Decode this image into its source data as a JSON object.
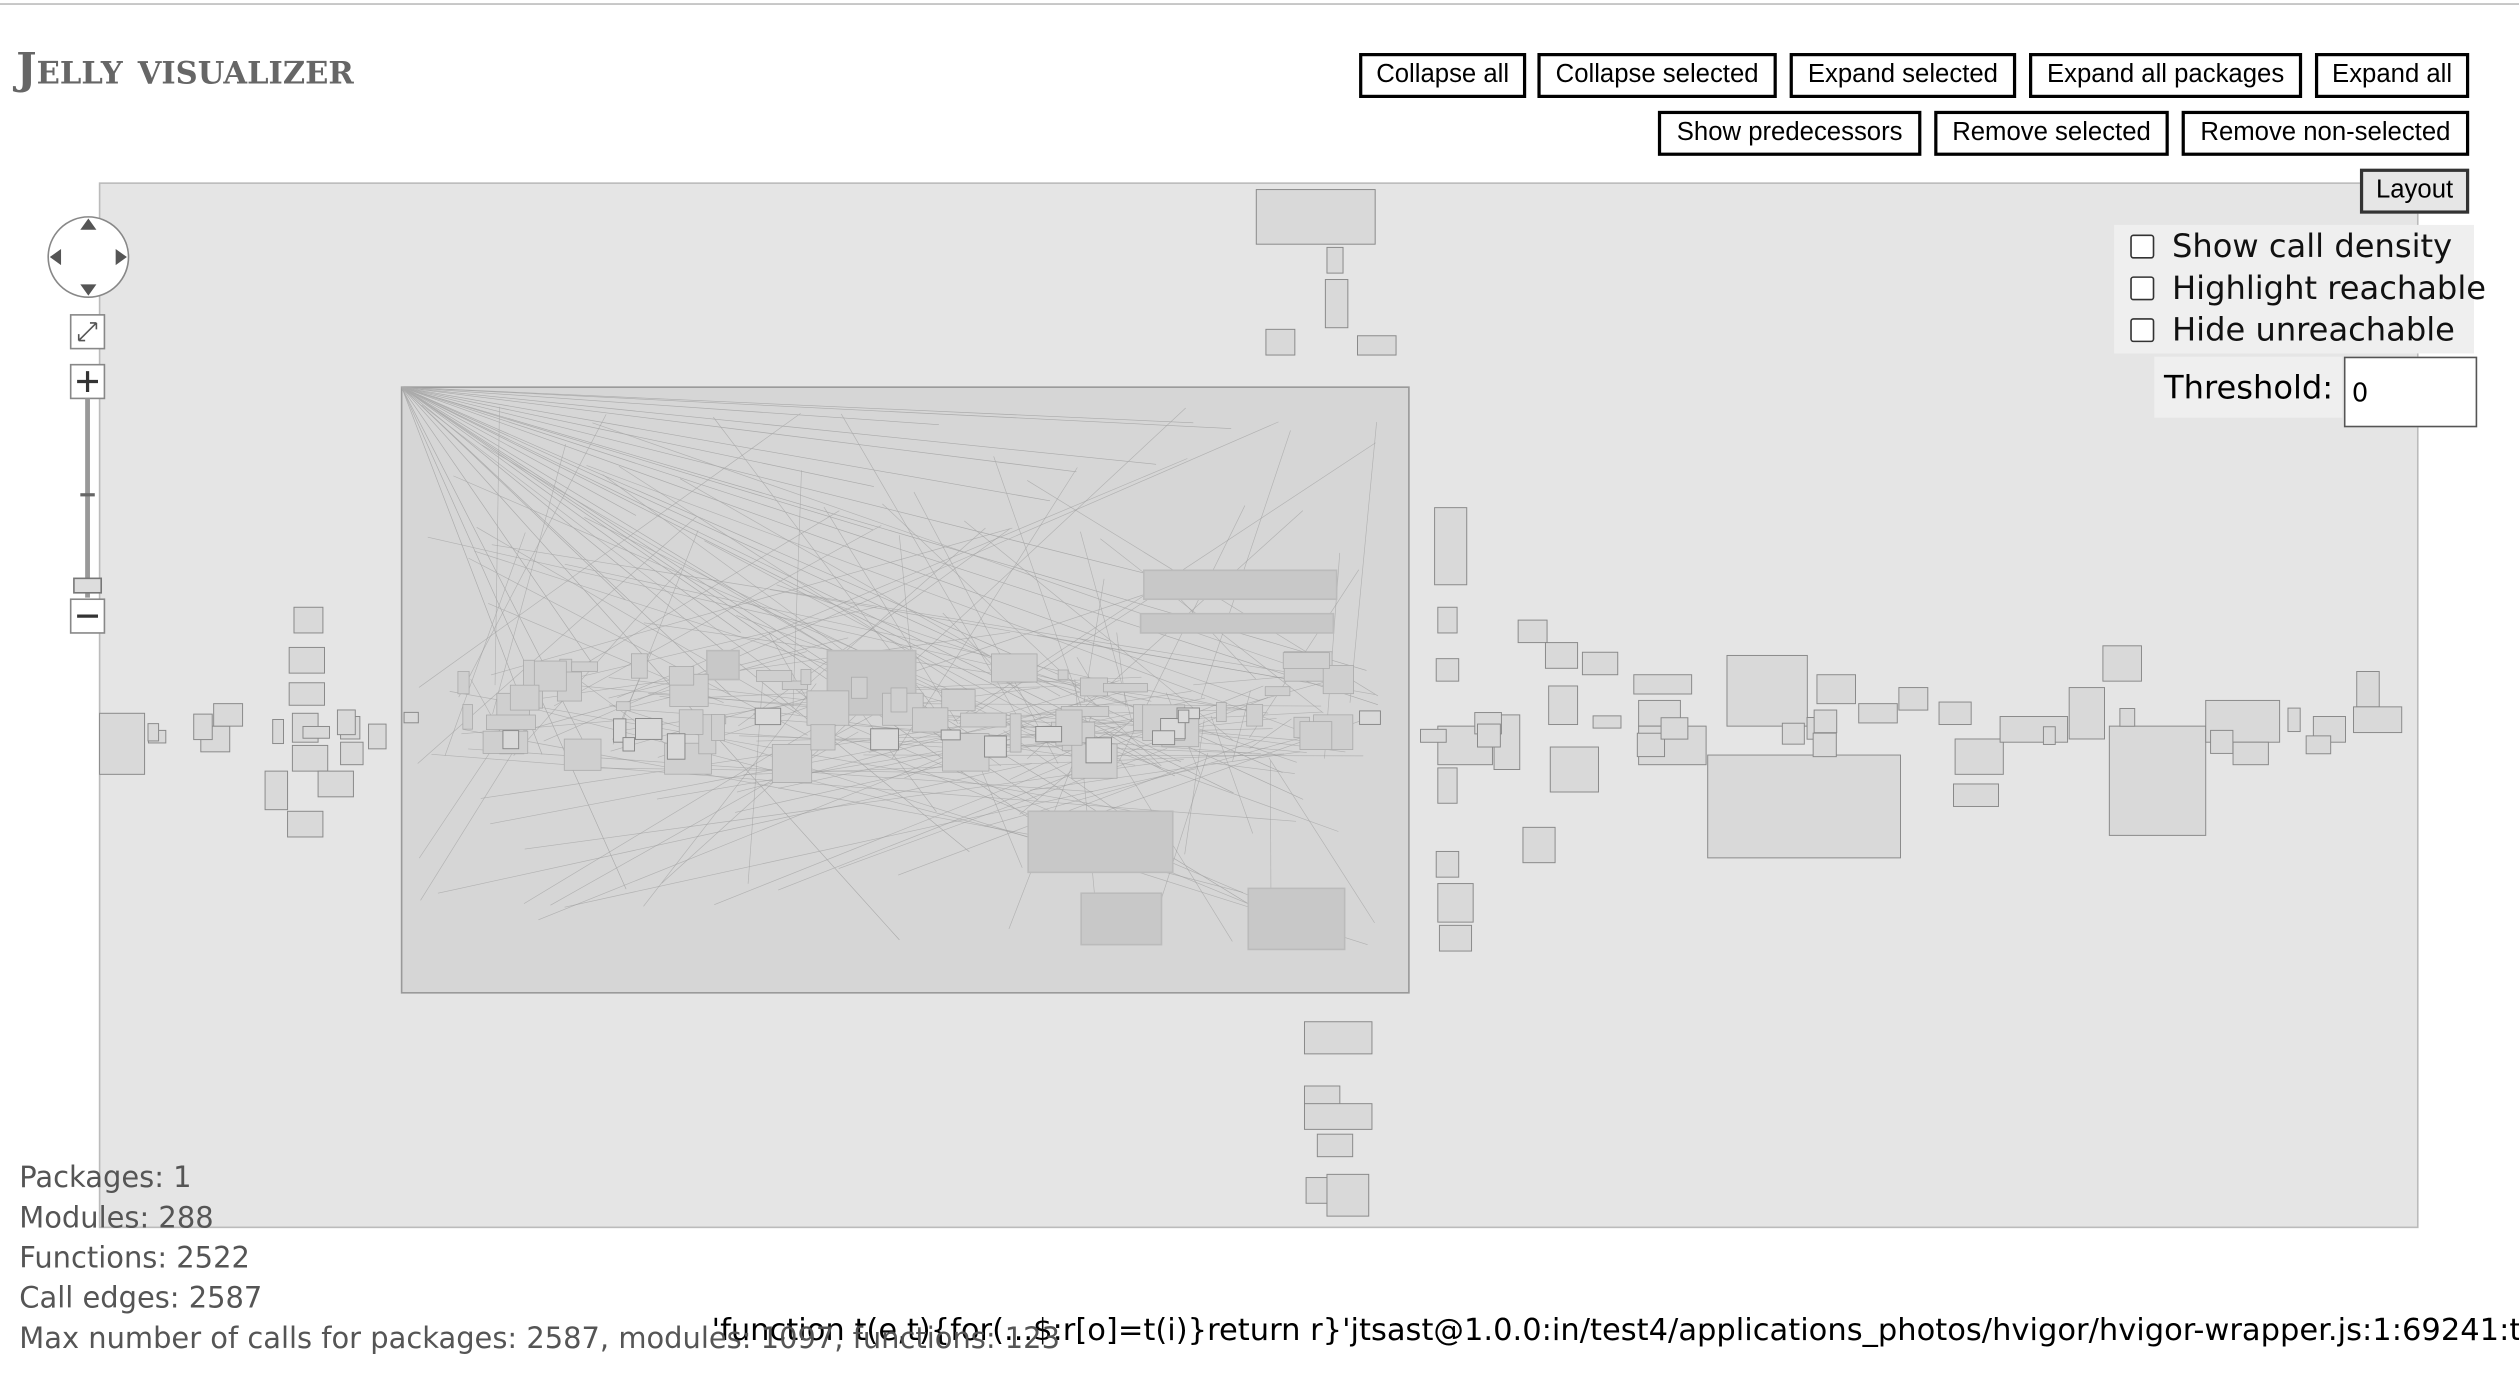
{
  "header": {
    "title": "Jelly visualizer"
  },
  "toolbar": {
    "row1": [
      "Collapse all",
      "Collapse selected",
      "Expand selected",
      "Expand all packages",
      "Expand all"
    ],
    "row2": [
      "Show predecessors",
      "Remove selected",
      "Remove non-selected"
    ],
    "layout": "Layout"
  },
  "options": {
    "checkboxes": [
      "Show call density",
      "Highlight reachable",
      "Hide unreachable"
    ],
    "threshold_label": "Threshold:",
    "threshold_value": "0"
  },
  "stats": [
    "Packages: 1",
    "Modules: 288",
    "Functions: 2522",
    "Call edges: 2587",
    "Max number of calls for packages: 2587, modules: 1097, functions: 123"
  ],
  "tooltip": "'function t(e,t){for(...$:r[o]=t(i)}return r}'jtsast@1.0.0:in/test4/applications_photos/hvigor/hvigor-wrapper.js:1:69241:t"
}
